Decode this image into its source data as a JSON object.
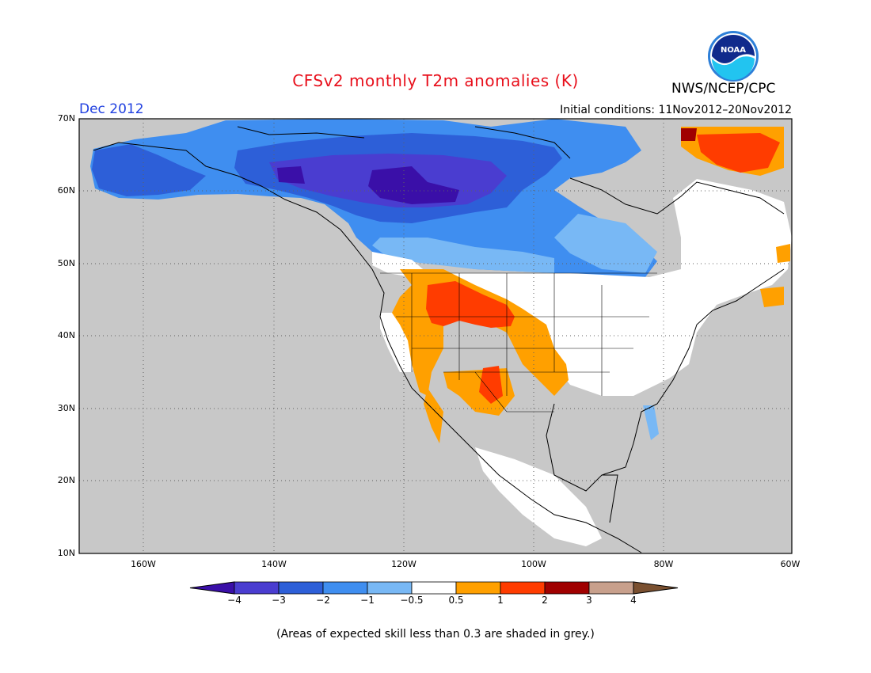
{
  "header": {
    "title": "CFSv2 monthly T2m anomalies (K)",
    "month": "Dec 2012",
    "initial_conditions": "Initial conditions: 11Nov2012–20Nov2012",
    "agency": "NWS/NCEP/CPC",
    "logo_text": "NOAA",
    "title_color": "#e8101c",
    "month_color": "#2040e0"
  },
  "map": {
    "lat_labels": [
      "70N",
      "60N",
      "50N",
      "40N",
      "30N",
      "20N",
      "10N"
    ],
    "lon_labels": [
      "160W",
      "140W",
      "120W",
      "100W",
      "80W",
      "60W"
    ],
    "land_grey": "#c8c8c8",
    "ocean_grey": "#c8c8c8"
  },
  "colorbar": {
    "labels": [
      "−4",
      "−3",
      "−2",
      "−1",
      "−0.5",
      "0.5",
      "1",
      "2",
      "3",
      "4"
    ],
    "colors": [
      "#3a0fa8",
      "#4a3dd0",
      "#2d5fd8",
      "#3f8ef0",
      "#78b8f5",
      "#ffffff",
      "#ffa000",
      "#ff3c00",
      "#a00000",
      "#c8a08c",
      "#7a5030"
    ]
  },
  "footnote": "(Areas of expected skill less than 0.3 are shaded in grey.)"
}
